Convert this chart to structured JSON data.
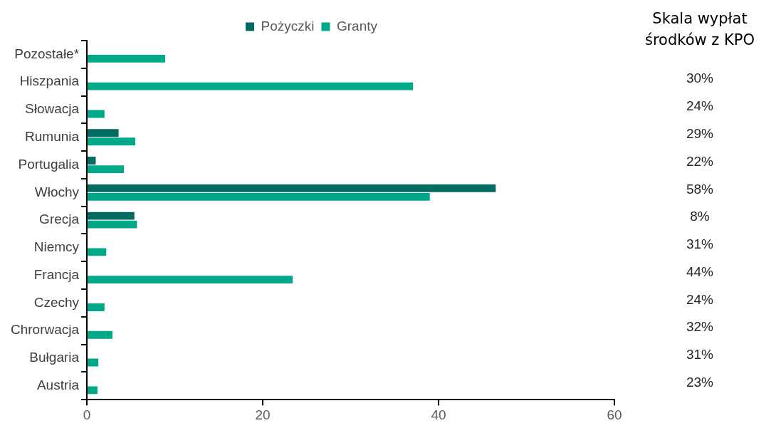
{
  "chart_data": {
    "type": "bar",
    "orientation": "horizontal",
    "categories": [
      "Pozostałe*",
      "Hiszpania",
      "Słowacja",
      "Rumunia",
      "Portugalia",
      "Włochy",
      "Grecja",
      "Niemcy",
      "Francja",
      "Czechy",
      "Chrorwacja",
      "Bułgaria",
      "Austria"
    ],
    "series": [
      {
        "name": "Pożyczki",
        "color": "#006b5f",
        "values": [
          null,
          null,
          null,
          3.6,
          1.0,
          46.5,
          5.4,
          null,
          null,
          null,
          null,
          null,
          null
        ]
      },
      {
        "name": "Granty",
        "color": "#00a88a",
        "values": [
          8.9,
          37.1,
          2.0,
          5.5,
          4.2,
          39.0,
          5.7,
          2.2,
          23.4,
          2.0,
          2.9,
          1.3,
          1.2
        ]
      }
    ],
    "xlim": [
      0,
      60
    ],
    "xticks": [
      0,
      20,
      40,
      60
    ],
    "grid": false,
    "legend": "top",
    "annotations": [
      "Skala wypłat środków z KPO",
      "30%",
      "24%",
      "29%",
      "22%",
      "58%",
      "8%",
      "31%",
      "44%",
      "24%",
      "32%",
      "31%",
      "23%"
    ]
  }
}
